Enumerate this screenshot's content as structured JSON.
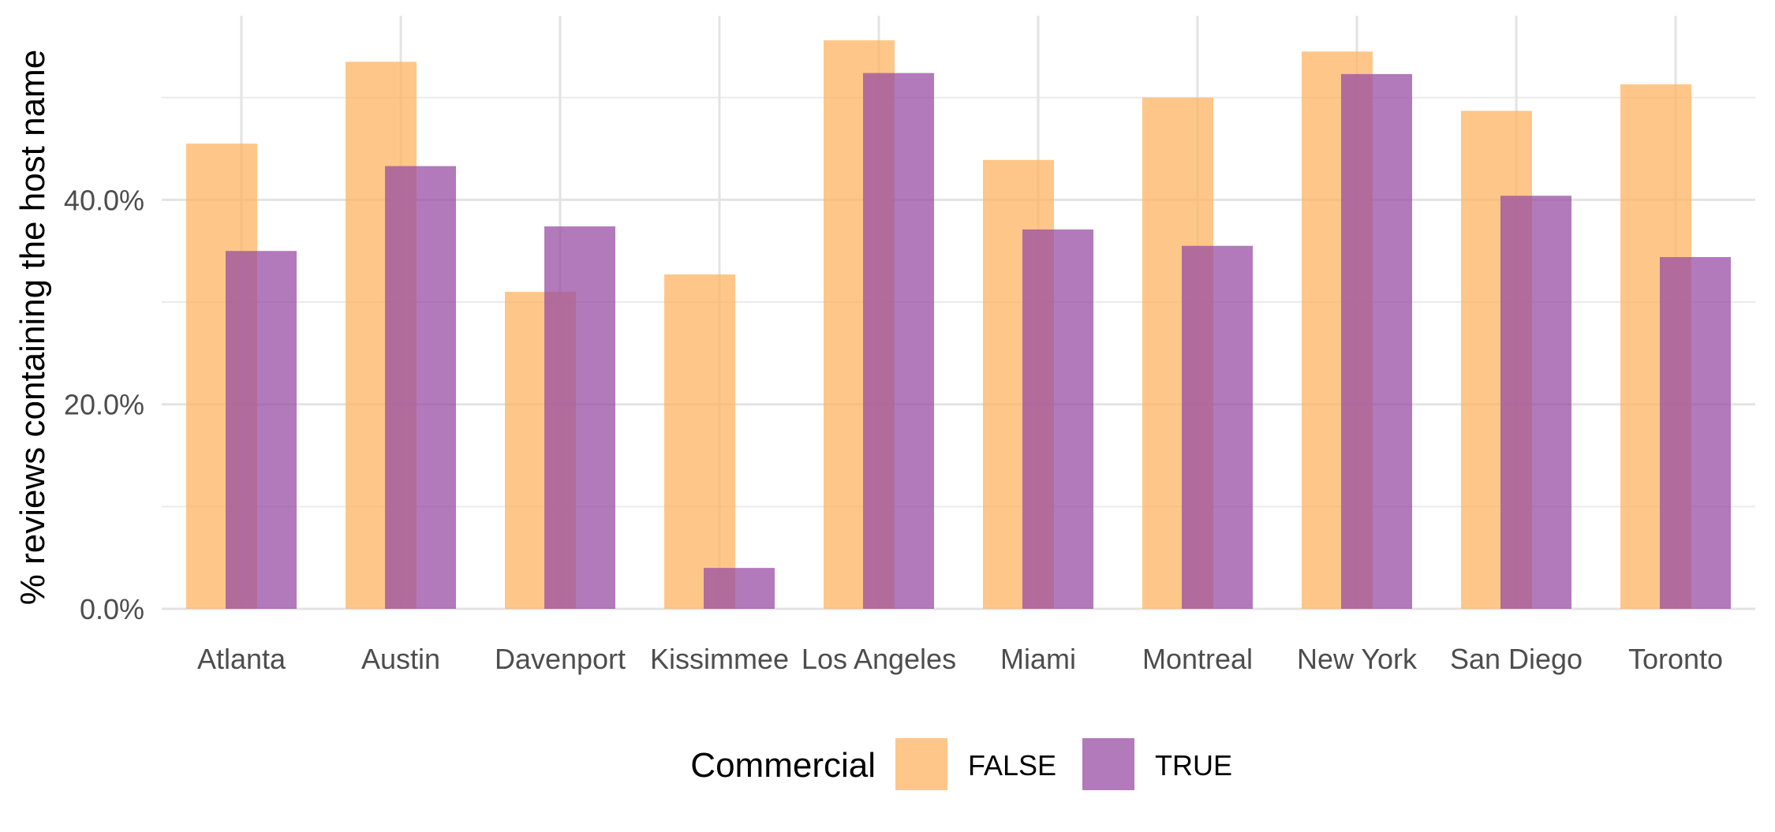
{
  "chart_data": {
    "type": "bar",
    "categories": [
      "Atlanta",
      "Austin",
      "Davenport",
      "Kissimmee",
      "Los Angeles",
      "Miami",
      "Montreal",
      "New York",
      "San Diego",
      "Toronto"
    ],
    "series": [
      {
        "name": "FALSE",
        "color": "#FDB462",
        "values": [
          45.5,
          53.5,
          31.0,
          32.7,
          55.6,
          43.9,
          50.0,
          54.5,
          48.7,
          51.3
        ]
      },
      {
        "name": "TRUE",
        "color": "#984EA3",
        "values": [
          35.0,
          43.3,
          37.4,
          4.0,
          52.4,
          37.1,
          35.5,
          52.3,
          40.4,
          34.4
        ]
      }
    ],
    "title": "",
    "xlabel": "",
    "ylabel": "% reviews containing the host name",
    "ylim": [
      0,
      58
    ],
    "y_ticks": [
      "0.0%",
      "20.0%",
      "40.0%"
    ],
    "y_tick_values": [
      0,
      20,
      40
    ],
    "y_minor_gridlines": [
      10,
      30,
      50
    ],
    "grid": true,
    "legend": {
      "title": "Commercial",
      "position": "bottom"
    }
  }
}
